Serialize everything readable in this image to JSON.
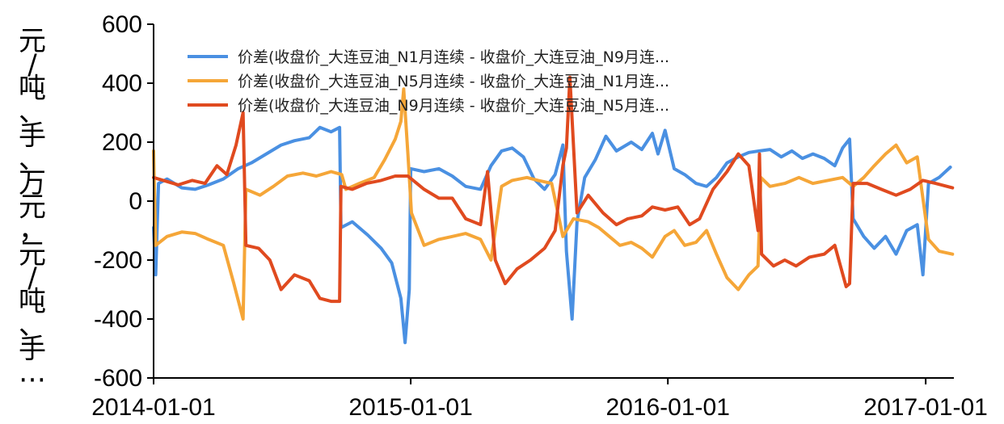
{
  "chart_data": {
    "type": "line",
    "title": "",
    "xlabel": "",
    "ylabel": "元/吨、手、万元，元/吨、手…",
    "ylim": [
      -600,
      600
    ],
    "xlim": [
      "2014-01-01",
      "2017-02-10"
    ],
    "yticks": [
      "600",
      "400",
      "200",
      "0",
      "-200",
      "-400",
      "-600"
    ],
    "xticks": [
      "2014-01-01",
      "2015-01-01",
      "2016-01-01",
      "2017-01-01"
    ],
    "grid": false,
    "legend_position": "top",
    "series": [
      {
        "name": "价差(收盘价_大连豆油_N1月连续 - 收盘价_大连豆油_N9月连...",
        "color": "#4a90e2",
        "points": [
          [
            "2014-01-01",
            -90
          ],
          [
            "2014-01-04",
            -250
          ],
          [
            "2014-01-08",
            60
          ],
          [
            "2014-01-20",
            75
          ],
          [
            "2014-02-10",
            45
          ],
          [
            "2014-03-01",
            40
          ],
          [
            "2014-03-20",
            55
          ],
          [
            "2014-04-10",
            75
          ],
          [
            "2014-05-01",
            110
          ],
          [
            "2014-05-20",
            130
          ],
          [
            "2014-06-10",
            160
          ],
          [
            "2014-07-01",
            190
          ],
          [
            "2014-07-20",
            205
          ],
          [
            "2014-08-10",
            215
          ],
          [
            "2014-08-25",
            250
          ],
          [
            "2014-09-10",
            235
          ],
          [
            "2014-09-22",
            250
          ],
          [
            "2014-09-24",
            -90
          ],
          [
            "2014-10-10",
            -70
          ],
          [
            "2014-11-01",
            -115
          ],
          [
            "2014-11-20",
            -160
          ],
          [
            "2014-12-05",
            -210
          ],
          [
            "2014-12-18",
            -330
          ],
          [
            "2014-12-24",
            -480
          ],
          [
            "2014-12-30",
            -300
          ],
          [
            "2015-01-01",
            110
          ],
          [
            "2015-01-20",
            100
          ],
          [
            "2015-02-10",
            110
          ],
          [
            "2015-03-01",
            85
          ],
          [
            "2015-03-20",
            50
          ],
          [
            "2015-04-10",
            40
          ],
          [
            "2015-04-25",
            120
          ],
          [
            "2015-05-10",
            170
          ],
          [
            "2015-05-25",
            180
          ],
          [
            "2015-06-10",
            150
          ],
          [
            "2015-06-25",
            75
          ],
          [
            "2015-07-10",
            40
          ],
          [
            "2015-07-25",
            90
          ],
          [
            "2015-08-05",
            190
          ],
          [
            "2015-08-10",
            -170
          ],
          [
            "2015-08-18",
            -400
          ],
          [
            "2015-08-25",
            -70
          ],
          [
            "2015-09-05",
            80
          ],
          [
            "2015-09-20",
            140
          ],
          [
            "2015-10-05",
            220
          ],
          [
            "2015-10-20",
            170
          ],
          [
            "2015-11-10",
            200
          ],
          [
            "2015-11-25",
            175
          ],
          [
            "2015-12-10",
            230
          ],
          [
            "2015-12-18",
            160
          ],
          [
            "2015-12-28",
            240
          ],
          [
            "2016-01-10",
            110
          ],
          [
            "2016-01-25",
            90
          ],
          [
            "2016-02-10",
            60
          ],
          [
            "2016-02-25",
            50
          ],
          [
            "2016-03-10",
            80
          ],
          [
            "2016-03-25",
            130
          ],
          [
            "2016-04-10",
            150
          ],
          [
            "2016-04-25",
            165
          ],
          [
            "2016-05-10",
            170
          ],
          [
            "2016-05-25",
            175
          ],
          [
            "2016-06-10",
            150
          ],
          [
            "2016-06-25",
            170
          ],
          [
            "2016-07-10",
            145
          ],
          [
            "2016-07-25",
            160
          ],
          [
            "2016-08-10",
            145
          ],
          [
            "2016-08-25",
            120
          ],
          [
            "2016-09-05",
            180
          ],
          [
            "2016-09-15",
            210
          ],
          [
            "2016-09-20",
            -60
          ],
          [
            "2016-10-05",
            -120
          ],
          [
            "2016-10-20",
            -160
          ],
          [
            "2016-11-05",
            -120
          ],
          [
            "2016-11-20",
            -180
          ],
          [
            "2016-12-05",
            -100
          ],
          [
            "2016-12-20",
            -80
          ],
          [
            "2016-12-28",
            -250
          ],
          [
            "2017-01-05",
            60
          ],
          [
            "2017-01-20",
            80
          ],
          [
            "2017-02-05",
            115
          ]
        ]
      },
      {
        "name": "价差(收盘价_大连豆油_N5月连续 - 收盘价_大连豆油_N1月连...",
        "color": "#f5a638",
        "points": [
          [
            "2014-01-01",
            170
          ],
          [
            "2014-01-04",
            -150
          ],
          [
            "2014-01-20",
            -120
          ],
          [
            "2014-02-10",
            -105
          ],
          [
            "2014-03-01",
            -110
          ],
          [
            "2014-03-20",
            -130
          ],
          [
            "2014-04-10",
            -150
          ],
          [
            "2014-04-25",
            -280
          ],
          [
            "2014-05-08",
            -400
          ],
          [
            "2014-05-12",
            40
          ],
          [
            "2014-06-01",
            20
          ],
          [
            "2014-06-20",
            50
          ],
          [
            "2014-07-10",
            85
          ],
          [
            "2014-08-01",
            95
          ],
          [
            "2014-08-20",
            85
          ],
          [
            "2014-09-10",
            100
          ],
          [
            "2014-09-25",
            90
          ],
          [
            "2014-10-01",
            40
          ],
          [
            "2014-10-20",
            60
          ],
          [
            "2014-11-10",
            80
          ],
          [
            "2014-11-25",
            140
          ],
          [
            "2014-12-10",
            210
          ],
          [
            "2014-12-18",
            270
          ],
          [
            "2014-12-22",
            380
          ],
          [
            "2014-12-28",
            160
          ],
          [
            "2015-01-02",
            -40
          ],
          [
            "2015-01-20",
            -150
          ],
          [
            "2015-02-10",
            -130
          ],
          [
            "2015-03-01",
            -120
          ],
          [
            "2015-03-20",
            -110
          ],
          [
            "2015-04-10",
            -130
          ],
          [
            "2015-04-25",
            -200
          ],
          [
            "2015-05-10",
            50
          ],
          [
            "2015-05-25",
            70
          ],
          [
            "2015-06-15",
            80
          ],
          [
            "2015-07-01",
            70
          ],
          [
            "2015-07-20",
            60
          ],
          [
            "2015-08-05",
            -120
          ],
          [
            "2015-08-20",
            -60
          ],
          [
            "2015-09-10",
            -70
          ],
          [
            "2015-09-25",
            -90
          ],
          [
            "2015-10-10",
            -120
          ],
          [
            "2015-10-25",
            -150
          ],
          [
            "2015-11-10",
            -140
          ],
          [
            "2015-11-25",
            -160
          ],
          [
            "2015-12-10",
            -190
          ],
          [
            "2015-12-28",
            -120
          ],
          [
            "2016-01-10",
            -100
          ],
          [
            "2016-01-25",
            -150
          ],
          [
            "2016-02-10",
            -140
          ],
          [
            "2016-02-25",
            -100
          ],
          [
            "2016-03-10",
            -180
          ],
          [
            "2016-03-25",
            -260
          ],
          [
            "2016-04-10",
            -300
          ],
          [
            "2016-04-25",
            -250
          ],
          [
            "2016-05-08",
            -220
          ],
          [
            "2016-05-12",
            80
          ],
          [
            "2016-05-25",
            50
          ],
          [
            "2016-06-15",
            60
          ],
          [
            "2016-07-05",
            80
          ],
          [
            "2016-07-25",
            60
          ],
          [
            "2016-08-15",
            70
          ],
          [
            "2016-09-05",
            80
          ],
          [
            "2016-09-20",
            50
          ],
          [
            "2016-10-05",
            80
          ],
          [
            "2016-10-20",
            120
          ],
          [
            "2016-11-05",
            160
          ],
          [
            "2016-11-20",
            190
          ],
          [
            "2016-12-05",
            130
          ],
          [
            "2016-12-20",
            150
          ],
          [
            "2017-01-05",
            -130
          ],
          [
            "2017-01-20",
            -170
          ],
          [
            "2017-02-08",
            -180
          ]
        ]
      },
      {
        "name": "价差(收盘价_大连豆油_N9月连续 - 收盘价_大连豆油_N5月连...",
        "color": "#e04a1f",
        "points": [
          [
            "2014-01-01",
            80
          ],
          [
            "2014-01-15",
            70
          ],
          [
            "2014-02-05",
            55
          ],
          [
            "2014-02-25",
            70
          ],
          [
            "2014-03-15",
            60
          ],
          [
            "2014-04-01",
            120
          ],
          [
            "2014-04-15",
            90
          ],
          [
            "2014-04-28",
            190
          ],
          [
            "2014-05-08",
            300
          ],
          [
            "2014-05-12",
            -150
          ],
          [
            "2014-05-30",
            -160
          ],
          [
            "2014-06-15",
            -200
          ],
          [
            "2014-07-01",
            -300
          ],
          [
            "2014-07-20",
            -250
          ],
          [
            "2014-08-10",
            -270
          ],
          [
            "2014-08-25",
            -330
          ],
          [
            "2014-09-10",
            -340
          ],
          [
            "2014-09-22",
            -340
          ],
          [
            "2014-09-24",
            50
          ],
          [
            "2014-10-10",
            40
          ],
          [
            "2014-10-30",
            60
          ],
          [
            "2014-11-20",
            70
          ],
          [
            "2014-12-10",
            85
          ],
          [
            "2014-12-28",
            85
          ],
          [
            "2015-01-20",
            40
          ],
          [
            "2015-02-10",
            10
          ],
          [
            "2015-03-01",
            10
          ],
          [
            "2015-03-20",
            -60
          ],
          [
            "2015-04-10",
            -80
          ],
          [
            "2015-04-20",
            100
          ],
          [
            "2015-05-01",
            -200
          ],
          [
            "2015-05-15",
            -280
          ],
          [
            "2015-06-01",
            -230
          ],
          [
            "2015-06-20",
            -200
          ],
          [
            "2015-07-10",
            -160
          ],
          [
            "2015-07-25",
            -100
          ],
          [
            "2015-08-05",
            120
          ],
          [
            "2015-08-10",
            180
          ],
          [
            "2015-08-15",
            420
          ],
          [
            "2015-08-25",
            -40
          ],
          [
            "2015-09-10",
            20
          ],
          [
            "2015-10-01",
            -40
          ],
          [
            "2015-10-20",
            -80
          ],
          [
            "2015-11-05",
            -60
          ],
          [
            "2015-11-25",
            -50
          ],
          [
            "2015-12-10",
            -20
          ],
          [
            "2015-12-28",
            -30
          ],
          [
            "2016-01-15",
            -20
          ],
          [
            "2016-02-01",
            -80
          ],
          [
            "2016-02-15",
            -60
          ],
          [
            "2016-03-05",
            40
          ],
          [
            "2016-03-25",
            100
          ],
          [
            "2016-04-10",
            160
          ],
          [
            "2016-04-25",
            120
          ],
          [
            "2016-05-08",
            -100
          ],
          [
            "2016-05-10",
            160
          ],
          [
            "2016-05-13",
            -180
          ],
          [
            "2016-05-30",
            -220
          ],
          [
            "2016-06-15",
            -200
          ],
          [
            "2016-07-01",
            -220
          ],
          [
            "2016-07-20",
            -190
          ],
          [
            "2016-08-10",
            -180
          ],
          [
            "2016-08-25",
            -150
          ],
          [
            "2016-09-10",
            -290
          ],
          [
            "2016-09-15",
            -280
          ],
          [
            "2016-09-20",
            60
          ],
          [
            "2016-10-10",
            60
          ],
          [
            "2016-10-30",
            40
          ],
          [
            "2016-11-20",
            20
          ],
          [
            "2016-12-10",
            40
          ],
          [
            "2016-12-28",
            70
          ],
          [
            "2017-01-15",
            60
          ],
          [
            "2017-02-08",
            45
          ]
        ]
      }
    ]
  }
}
